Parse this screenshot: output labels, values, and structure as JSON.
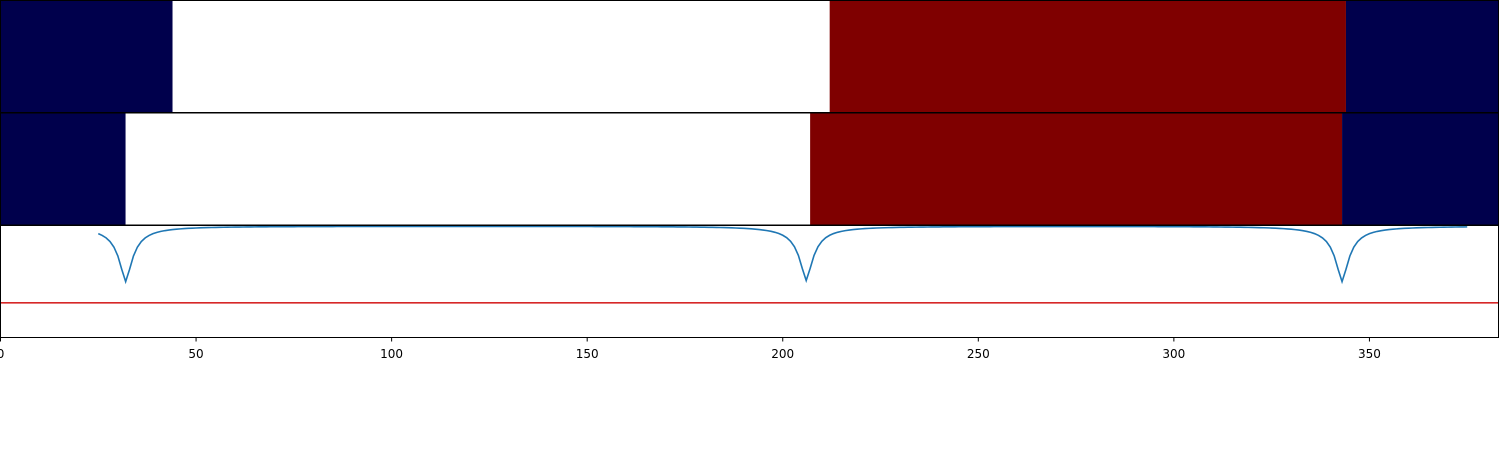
{
  "chart_data": {
    "type": "composite",
    "x_axis": {
      "xlim": [
        0,
        383
      ],
      "ticks": [
        0,
        50,
        100,
        150,
        200,
        250,
        300,
        350
      ],
      "tick_labels": [
        "0",
        "50",
        "100",
        "150",
        "200",
        "250",
        "300",
        "350"
      ]
    },
    "panels": [
      {
        "type": "heatmap",
        "segments": [
          {
            "start": 0,
            "end": 44,
            "color": "#00004c"
          },
          {
            "start": 44,
            "end": 212,
            "color": "#ffffff"
          },
          {
            "start": 212,
            "end": 344,
            "color": "#7f0000"
          },
          {
            "start": 344,
            "end": 383,
            "color": "#00004c"
          }
        ]
      },
      {
        "type": "heatmap",
        "segments": [
          {
            "start": 0,
            "end": 32,
            "color": "#00004c"
          },
          {
            "start": 32,
            "end": 207,
            "color": "#ffffff"
          },
          {
            "start": 207,
            "end": 343,
            "color": "#7f0000"
          },
          {
            "start": 343,
            "end": 383,
            "color": "#00004c"
          }
        ]
      },
      {
        "type": "line",
        "ylim": [
          0,
          1
        ],
        "line_color": "#1f77b4",
        "threshold": {
          "value": 0.31,
          "color": "#d62728"
        },
        "dips": [
          {
            "center": 32,
            "min": 0.5
          },
          {
            "center": 206,
            "min": 0.51
          },
          {
            "center": 343,
            "min": 0.5
          }
        ],
        "baseline": 0.995
      }
    ]
  }
}
